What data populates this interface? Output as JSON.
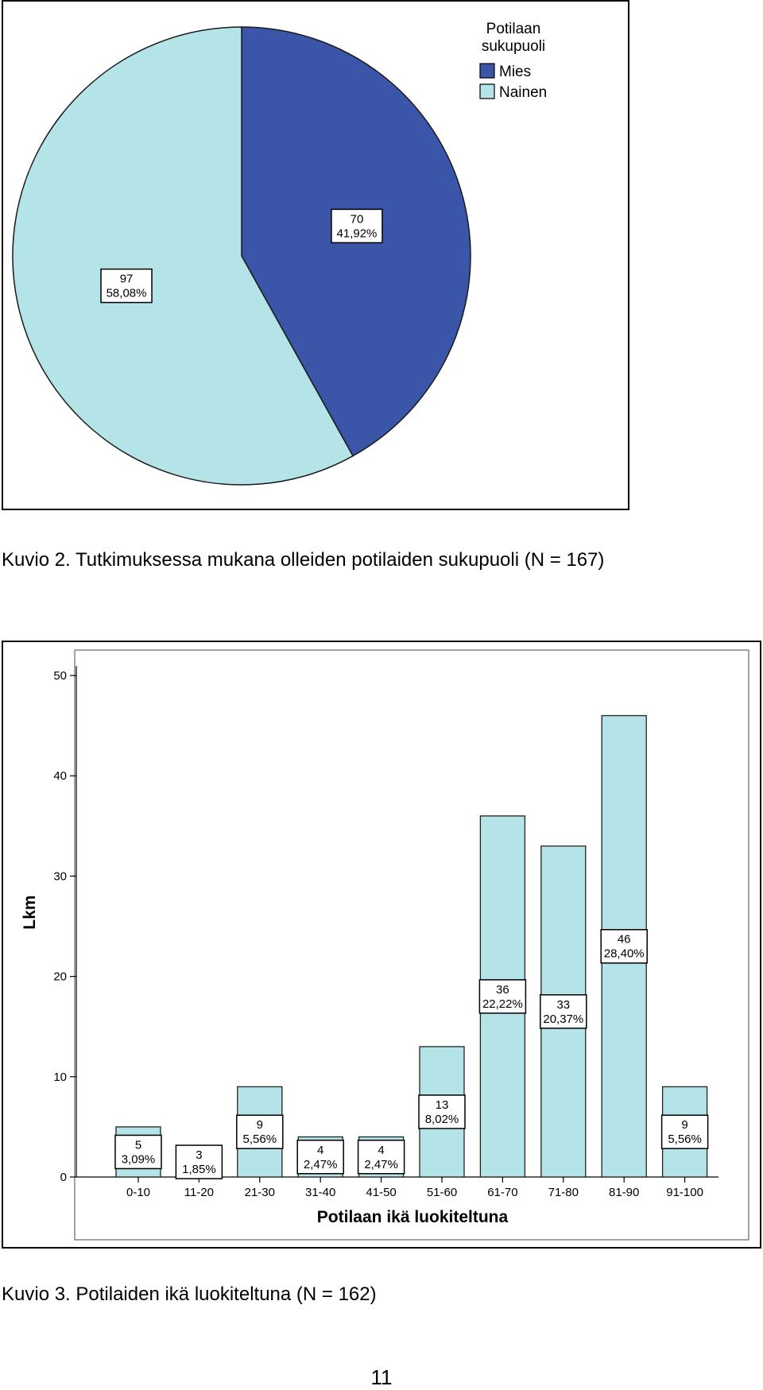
{
  "captions": {
    "fig2": "Kuvio 2. Tutkimuksessa mukana olleiden potilaiden sukupuoli (N = 167)",
    "fig3": "Kuvio 3. Potilaiden ikä luokiteltuna (N = 162)"
  },
  "page_number": "11",
  "chart_data": [
    {
      "type": "pie",
      "legend_title": "Potilaan sukupuoli",
      "legend_title_lines": [
        "Potilaan",
        "sukupuoli"
      ],
      "legend_position": "top-right",
      "slices": [
        {
          "label": "Mies",
          "count": 70,
          "count_label": "70",
          "percent": 41.92,
          "percent_label": "41,92%",
          "color": "#3b55a8"
        },
        {
          "label": "Nainen",
          "count": 97,
          "count_label": "97",
          "percent": 58.08,
          "percent_label": "58,08%",
          "color": "#b4e4e7"
        }
      ]
    },
    {
      "type": "bar",
      "xlabel": "Potilaan ikä luokiteltuna",
      "ylabel": "Lkm",
      "ylim": [
        0,
        52
      ],
      "yticks": [
        "0",
        "10",
        "20",
        "30",
        "40",
        "50"
      ],
      "bar_color": "#b4e4e7",
      "categories": [
        "0-10",
        "11-20",
        "21-30",
        "31-40",
        "41-50",
        "51-60",
        "61-70",
        "71-80",
        "81-90",
        "91-100"
      ],
      "values": [
        5,
        3,
        9,
        4,
        4,
        13,
        36,
        33,
        46,
        9
      ],
      "count_labels": [
        "5",
        "3",
        "9",
        "4",
        "4",
        "13",
        "36",
        "33",
        "46",
        "9"
      ],
      "percent_labels": [
        "3,09%",
        "1,85%",
        "5,56%",
        "2,47%",
        "2,47%",
        "8,02%",
        "22,22%",
        "20,37%",
        "28,40%",
        "5,56%"
      ]
    }
  ]
}
